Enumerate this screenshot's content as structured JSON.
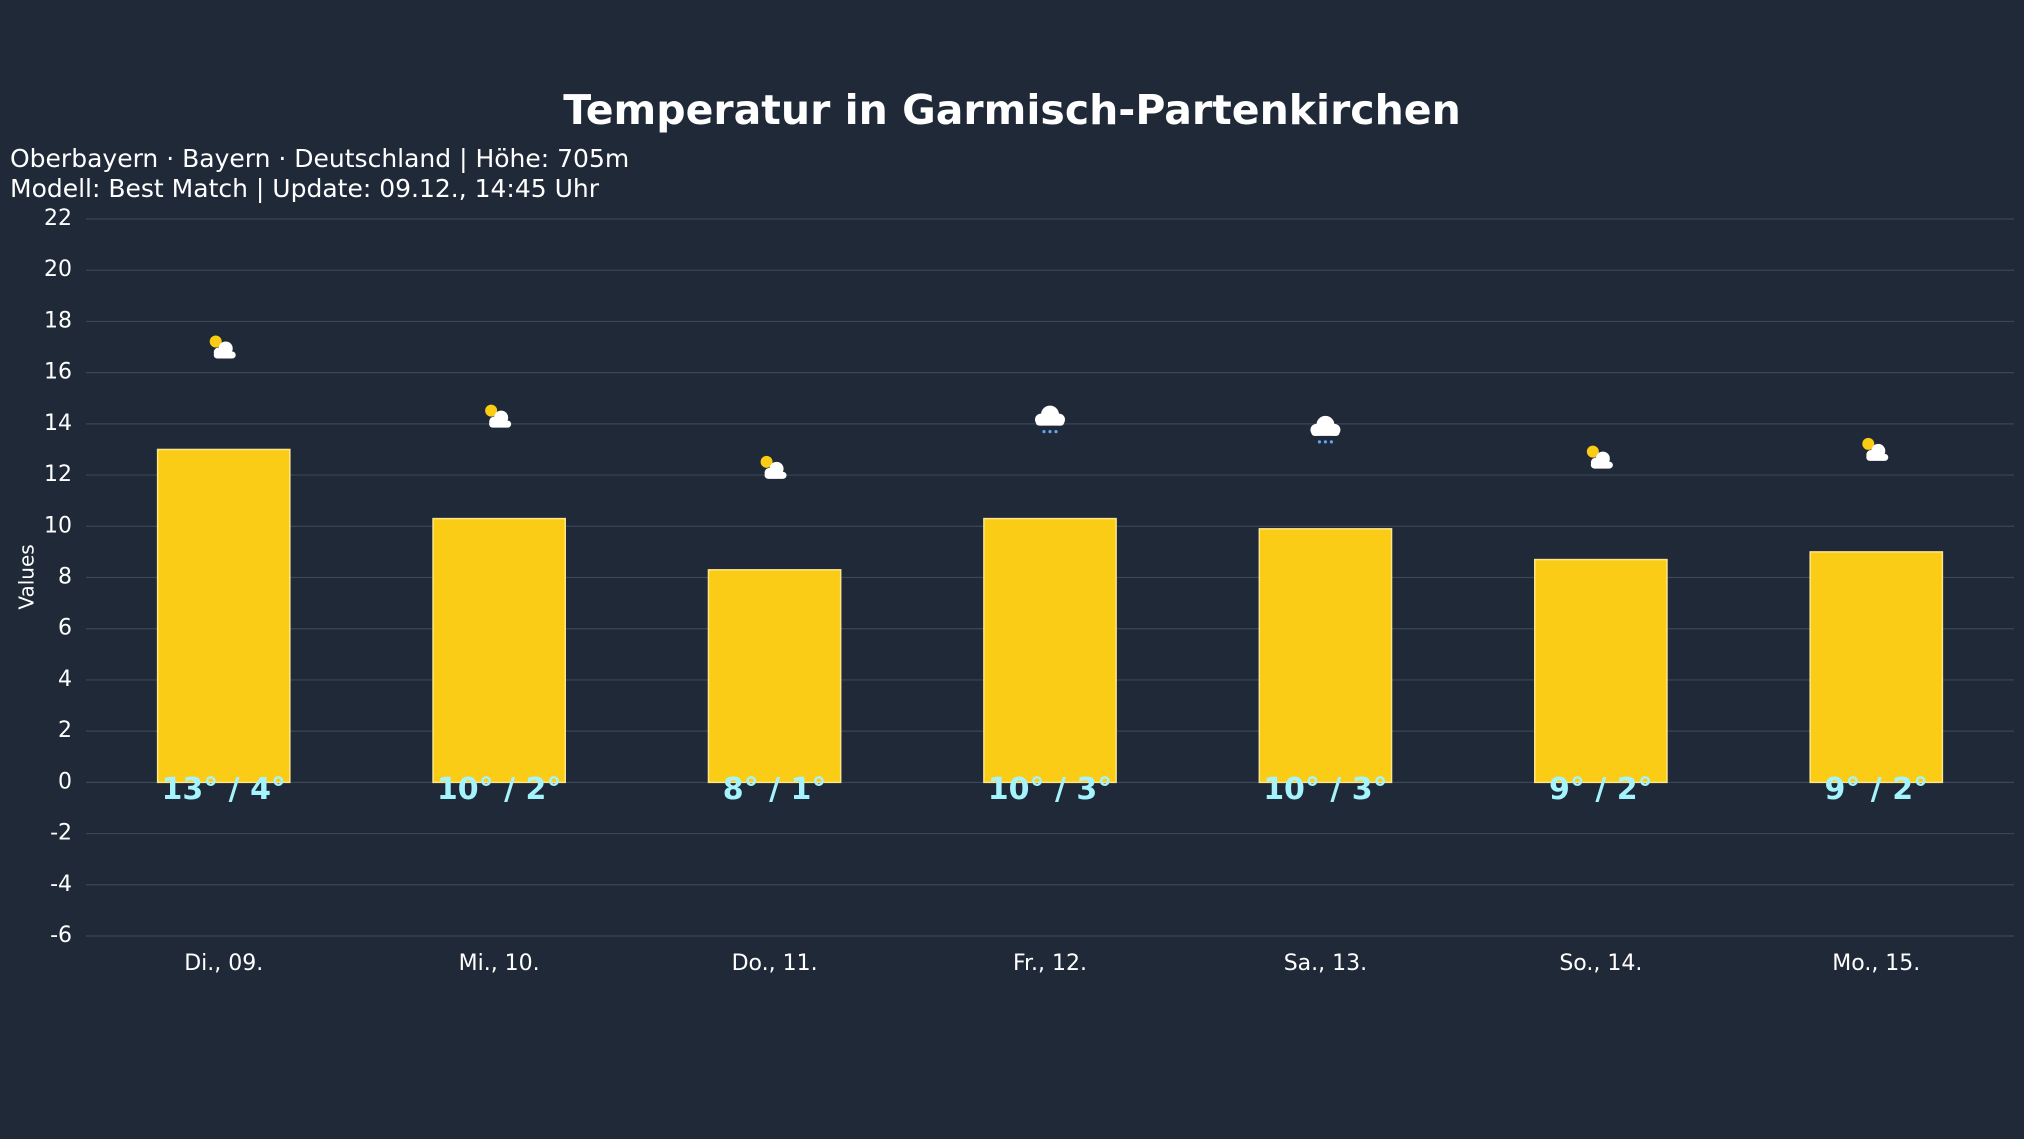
{
  "chart_data": {
    "type": "bar",
    "title": "Temperatur in Garmisch-Partenkirchen",
    "subtitle": [
      "Oberbayern · Bayern · Deutschland | Höhe: 705m",
      "Modell: Best Match | Update: 09.12., 14:45 Uhr"
    ],
    "y_label": "Values",
    "categories": [
      "Di., 09.",
      "Mi., 10.",
      "Do., 11.",
      "Fr., 12.",
      "Sa., 13.",
      "So., 14.",
      "Mo., 15."
    ],
    "values": [
      13,
      10.3,
      8.3,
      10.3,
      9.9,
      8.7,
      9.0
    ],
    "value_labels": [
      "13° / 4°",
      "10° / 2°",
      "8° / 1°",
      "10° / 3°",
      "10° / 3°",
      "9° / 2°",
      "9° / 2°"
    ],
    "icons": [
      "partly-cloudy",
      "partly-cloudy",
      "partly-cloudy",
      "snow",
      "snow",
      "partly-cloudy",
      "partly-cloudy"
    ],
    "color": "#facc15",
    "ylim": [
      -6,
      22
    ],
    "yticks": [
      -6,
      -4,
      -2,
      0,
      2,
      4,
      6,
      8,
      10,
      12,
      14,
      16,
      18,
      20,
      22
    ],
    "grid": true
  }
}
